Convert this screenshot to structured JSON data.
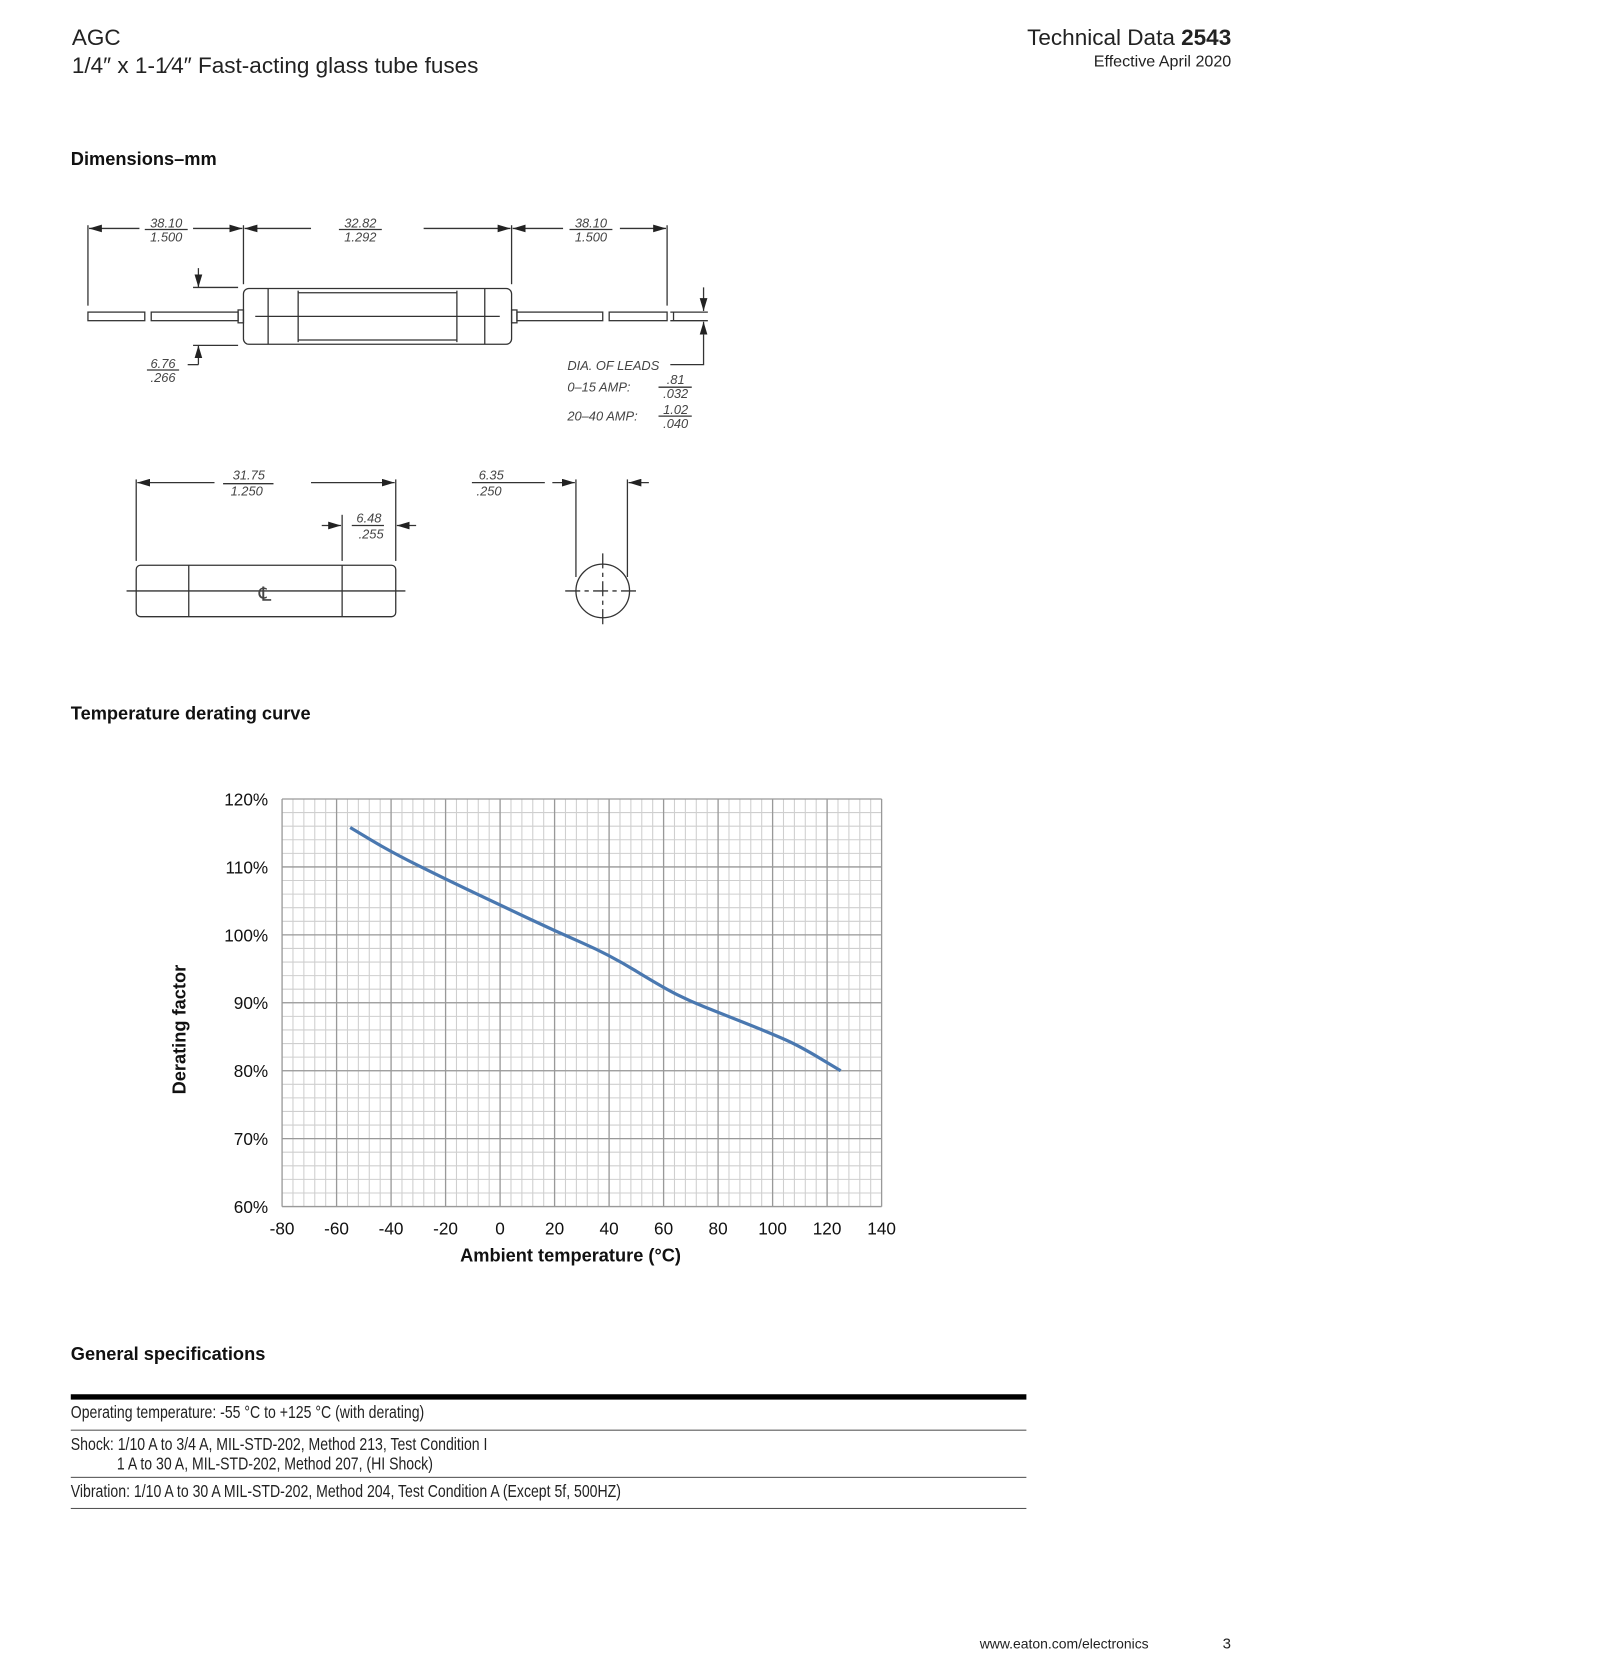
{
  "header": {
    "product": "AGC",
    "subtitle": "1/4″ x 1-1⁄4″ Fast-acting glass tube fuses",
    "doc_prefix": "Technical Data",
    "doc_number": "2543",
    "effective": "Effective April 2020"
  },
  "sections": {
    "dimensions": "Dimensions–mm",
    "derating": "Temperature derating curve",
    "specs": "General specifications"
  },
  "drawing": {
    "lead_left_mm": "38.10",
    "lead_left_in": "1.500",
    "body_mm": "32.82",
    "body_in": "1.292",
    "lead_right_mm": "38.10",
    "lead_right_in": "1.500",
    "cap_dia_mm": "6.76",
    "cap_dia_in": ".266",
    "lead_dia_label": "DIA. OF LEADS",
    "amp1_label": "0–15 AMP:",
    "amp1_mm": ".81",
    "amp1_in": ".032",
    "amp2_label": "20–40 AMP:",
    "amp2_mm": "1.02",
    "amp2_in": ".040",
    "length_mm": "31.75",
    "length_in": "1.250",
    "cap_len_mm": "6.48",
    "cap_len_in": ".255",
    "dia_mm": "6.35",
    "dia_in": ".250",
    "centerline_symbol": "℄"
  },
  "chart_data": {
    "type": "line",
    "title": "",
    "xlabel": "Ambient temperature (°C)",
    "ylabel": "Derating factor",
    "xlim": [
      -80,
      140
    ],
    "ylim": [
      60,
      120
    ],
    "x_ticks": [
      "-80",
      "-60",
      "-40",
      "-20",
      "0",
      "20",
      "40",
      "60",
      "80",
      "100",
      "120",
      "140"
    ],
    "y_ticks": [
      "60%",
      "70%",
      "80%",
      "90%",
      "100%",
      "110%",
      "120%"
    ],
    "grid": true,
    "series_color": "#4a78b0",
    "series": [
      {
        "x": [
          -55,
          -40,
          -20,
          0,
          20,
          40,
          60,
          70,
          80,
          100,
          110,
          125
        ],
        "y": [
          115.8,
          112.2,
          108.2,
          104.4,
          100.6,
          97.1,
          92.2,
          90.2,
          88.6,
          85.4,
          83.6,
          80.0
        ]
      }
    ]
  },
  "specs": {
    "rows": [
      {
        "lines": [
          "Operating temperature: -55 °C to +125 °C (with derating)"
        ]
      },
      {
        "lines": [
          "Shock: 1/10 A to 3/4 A, MIL-STD-202, Method 213, Test Condition I",
          "1 A to 30 A,  MIL-STD-202, Method 207, (HI Shock)"
        ]
      },
      {
        "lines": [
          "Vibration: 1/10 A to 30 A MIL-STD-202, Method 204, Test Condition A (Except 5f, 500HZ)"
        ]
      }
    ]
  },
  "footer": {
    "url": "www.eaton.com/electronics",
    "page": "3"
  }
}
